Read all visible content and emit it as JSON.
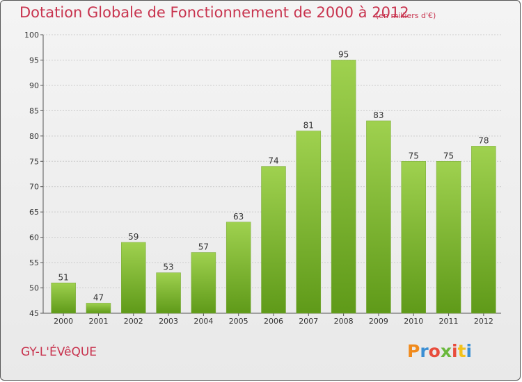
{
  "header": {
    "title": "Dotation Globale de Fonctionnement de 2000 à 2012",
    "subtitle": "(en milliers d'€)"
  },
  "footer": {
    "commune": "GY-L'ÉVêQUE",
    "brand": "Proxiti",
    "brand_colors": [
      "#f08a1c",
      "#3b8fd4",
      "#e84c3c",
      "#6ab83c",
      "#e84c3c",
      "#f3c21b",
      "#3b8fd4"
    ]
  },
  "colors": {
    "title": "#c8334e",
    "bar_light": "#9fd14f",
    "bar_dark": "#5f9a19",
    "grid": "#cccccc"
  },
  "chart_data": {
    "type": "bar",
    "categories": [
      "2000",
      "2001",
      "2002",
      "2003",
      "2004",
      "2005",
      "2006",
      "2007",
      "2008",
      "2009",
      "2010",
      "2011",
      "2012"
    ],
    "values": [
      51,
      47,
      59,
      53,
      57,
      63,
      74,
      81,
      95,
      83,
      75,
      75,
      78
    ],
    "ylim": [
      45,
      100
    ],
    "yticks": [
      45,
      50,
      55,
      60,
      65,
      70,
      75,
      80,
      85,
      90,
      95,
      100
    ],
    "grid": true,
    "legend": "none"
  }
}
